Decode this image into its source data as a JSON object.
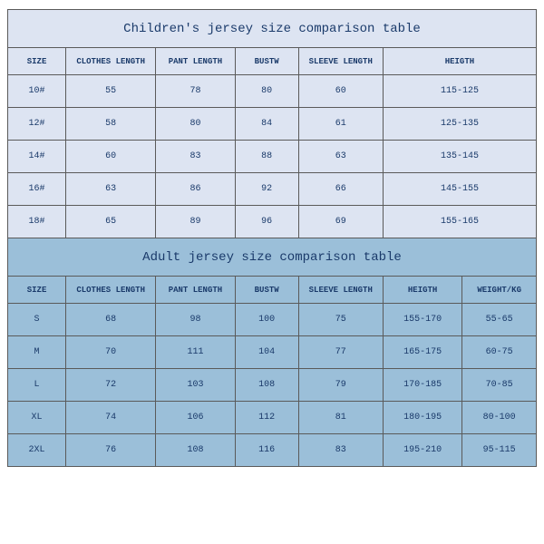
{
  "children": {
    "title": "Children's jersey size comparison table",
    "columns": [
      "SIZE",
      "CLOTHES LENGTH",
      "PANT LENGTH",
      "BUSTW",
      "SLEEVE LENGTH",
      "HEIGTH"
    ],
    "rows": [
      [
        "10#",
        "55",
        "78",
        "80",
        "60",
        "115-125"
      ],
      [
        "12#",
        "58",
        "80",
        "84",
        "61",
        "125-135"
      ],
      [
        "14#",
        "60",
        "83",
        "88",
        "63",
        "135-145"
      ],
      [
        "16#",
        "63",
        "86",
        "92",
        "66",
        "145-155"
      ],
      [
        "18#",
        "65",
        "89",
        "96",
        "69",
        "155-165"
      ]
    ],
    "title_fontsize": 14,
    "header_fontsize": 9,
    "data_fontsize": 10,
    "bg_color": "#dde4f2",
    "border_color": "#5a5a5a",
    "text_color": "#1a3a6a",
    "col_widths_pct": [
      11,
      17,
      15,
      12,
      16,
      29
    ]
  },
  "adult": {
    "title": "Adult jersey size comparison table",
    "columns": [
      "SIZE",
      "CLOTHES LENGTH",
      "PANT LENGTH",
      "BUSTW",
      "SLEEVE LENGTH",
      "HEIGTH",
      "WEIGHT/KG"
    ],
    "rows": [
      [
        "S",
        "68",
        "98",
        "100",
        "75",
        "155-170",
        "55-65"
      ],
      [
        "M",
        "70",
        "111",
        "104",
        "77",
        "165-175",
        "60-75"
      ],
      [
        "L",
        "72",
        "103",
        "108",
        "79",
        "170-185",
        "70-85"
      ],
      [
        "XL",
        "74",
        "106",
        "112",
        "81",
        "180-195",
        "80-100"
      ],
      [
        "2XL",
        "76",
        "108",
        "116",
        "83",
        "195-210",
        "95-115"
      ]
    ],
    "title_fontsize": 14,
    "header_fontsize": 9,
    "data_fontsize": 10,
    "bg_color": "#9bbfd9",
    "border_color": "#5a5a5a",
    "text_color": "#1a3a6a",
    "col_widths_pct": [
      11,
      17,
      15,
      12,
      16,
      15,
      14
    ]
  }
}
